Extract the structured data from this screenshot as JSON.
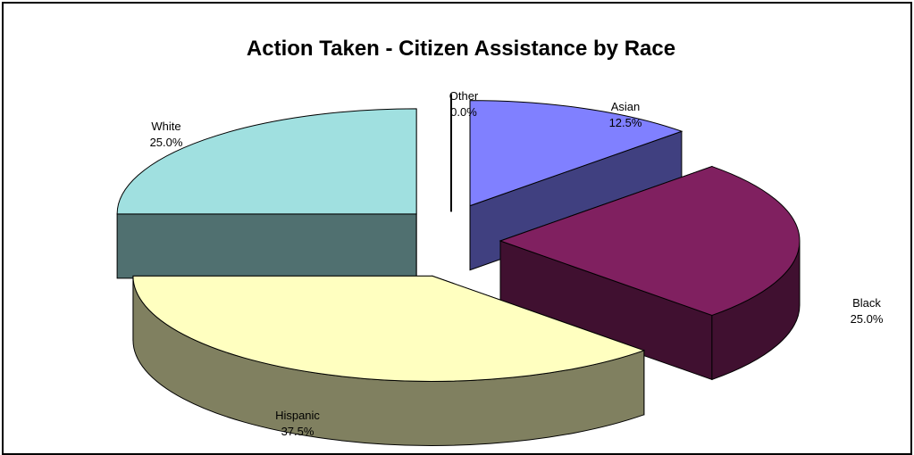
{
  "chart_data": {
    "type": "pie",
    "title": "Action Taken - Citizen Assistance by Race",
    "three_d": true,
    "exploded": true,
    "slices": [
      {
        "label": "Asian",
        "percent_label": "12.5%",
        "value": 12.5,
        "color": "#8080ff",
        "side_color": "#404080"
      },
      {
        "label": "Black",
        "percent_label": "25.0%",
        "value": 25.0,
        "color": "#802060",
        "side_color": "#401030"
      },
      {
        "label": "Hispanic",
        "percent_label": "37.5%",
        "value": 37.5,
        "color": "#ffffc0",
        "side_color": "#808060"
      },
      {
        "label": "White",
        "percent_label": "25.0%",
        "value": 25.0,
        "color": "#a0e0e0",
        "side_color": "#507070"
      },
      {
        "label": "Other",
        "percent_label": "0.0%",
        "value": 0.0,
        "color": "#ffffff",
        "side_color": "#000000"
      }
    ]
  }
}
